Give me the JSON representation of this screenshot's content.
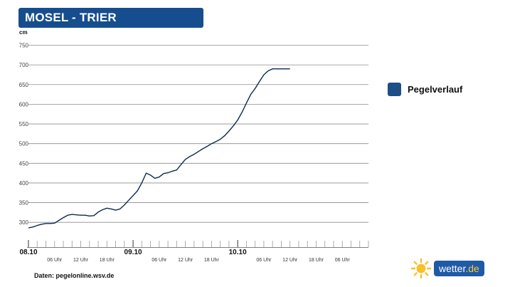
{
  "header": {
    "title": "MOSEL - TRIER"
  },
  "source": "Daten: pegelonline.wsv.de",
  "legend": {
    "label": "Pegelverlauf"
  },
  "logo": {
    "text_main": "wetter",
    "text_tld": ".de",
    "sun_color": "#f6c12e",
    "box_color": "#1f5aa6"
  },
  "colors": {
    "line": "#0e2a4f",
    "grid": "#8a8a8a",
    "title_bg": "#164d8f"
  },
  "chart_data": {
    "type": "line",
    "title": "MOSEL - TRIER",
    "ylabel": "cm",
    "ylim": [
      275,
      760
    ],
    "yticks": [
      300,
      350,
      400,
      450,
      500,
      550,
      600,
      650,
      700,
      750
    ],
    "grid": true,
    "legend_placement": "right",
    "x_unit": "hours since 08.10 00 Uhr",
    "xlim": [
      0,
      78
    ],
    "x_major_ticks": [
      {
        "x": 0,
        "label": "08.10"
      },
      {
        "x": 24,
        "label": "09.10"
      },
      {
        "x": 48,
        "label": "10.10"
      }
    ],
    "x_minor_ticks": [
      {
        "x": 6,
        "label": "06 Uhr"
      },
      {
        "x": 12,
        "label": "12 Uhr"
      },
      {
        "x": 18,
        "label": "18 Uhr"
      },
      {
        "x": 30,
        "label": "06 Uhr"
      },
      {
        "x": 36,
        "label": "12 Uhr"
      },
      {
        "x": 42,
        "label": "18 Uhr"
      },
      {
        "x": 54,
        "label": "06 Uhr"
      },
      {
        "x": 60,
        "label": "12 Uhr"
      },
      {
        "x": 66,
        "label": "18 Uhr"
      },
      {
        "x": 72,
        "label": "06 Uhr"
      }
    ],
    "series": [
      {
        "name": "Pegelverlauf",
        "x": [
          0,
          1,
          2,
          3,
          4,
          5,
          6,
          7,
          8,
          9,
          10,
          11,
          12,
          13,
          14,
          15,
          16,
          17,
          18,
          19,
          20,
          21,
          22,
          23,
          24,
          25,
          26,
          27,
          28,
          29,
          30,
          31,
          32,
          33,
          34,
          35,
          36,
          37,
          38,
          39,
          40,
          41,
          42,
          43,
          44,
          45,
          46,
          47,
          48,
          49,
          50,
          51,
          52,
          53,
          54,
          55,
          56,
          57,
          58,
          59,
          60
        ],
        "values": [
          286,
          288,
          292,
          295,
          297,
          297,
          298,
          305,
          312,
          318,
          320,
          319,
          318,
          318,
          316,
          317,
          326,
          332,
          336,
          334,
          331,
          334,
          344,
          356,
          368,
          380,
          400,
          425,
          420,
          412,
          415,
          424,
          426,
          430,
          433,
          447,
          460,
          467,
          473,
          480,
          487,
          493,
          500,
          505,
          511,
          520,
          532,
          545,
          560,
          580,
          603,
          625,
          640,
          658,
          675,
          685,
          690,
          690,
          690,
          690,
          690
        ]
      }
    ]
  }
}
